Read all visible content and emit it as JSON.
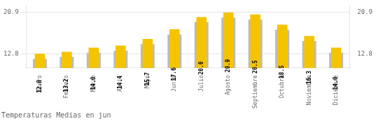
{
  "chart_data": {
    "type": "bar",
    "title": "Temperaturas Medias en jun",
    "categories": [
      "Enero",
      "Febrero",
      "Marzo",
      "Abril",
      "Mayo",
      "Junio",
      "Julio",
      "Agosto",
      "Septiembre",
      "Octubre",
      "Noviembre",
      "Diciembre"
    ],
    "series": [
      {
        "color": "#BBBBBB",
        "values": [
          11.8,
          12.2,
          13.0,
          13.4,
          14.7,
          16.6,
          19.0,
          19.9,
          19.5,
          17.5,
          15.3,
          13.0
        ]
      },
      {
        "color": "#F5C400",
        "values": [
          12.8,
          13.2,
          14.0,
          14.4,
          15.7,
          17.6,
          20.0,
          20.9,
          20.5,
          18.5,
          16.3,
          14.0
        ],
        "data_labels": true,
        "value_labels": [
          "12.8",
          "13.2",
          "14.0",
          "14.4",
          "15.7",
          "17.6",
          "20.0",
          "20.9",
          "20.5",
          "18.5",
          "16.3",
          "14.0"
        ]
      }
    ],
    "ylim": [
      10.0,
      22.2
    ],
    "yticks": [
      12.8,
      20.9
    ],
    "y2lim": [
      10.0,
      22.2
    ],
    "y2ticks": [
      12.8,
      20.9
    ],
    "grid": true
  }
}
